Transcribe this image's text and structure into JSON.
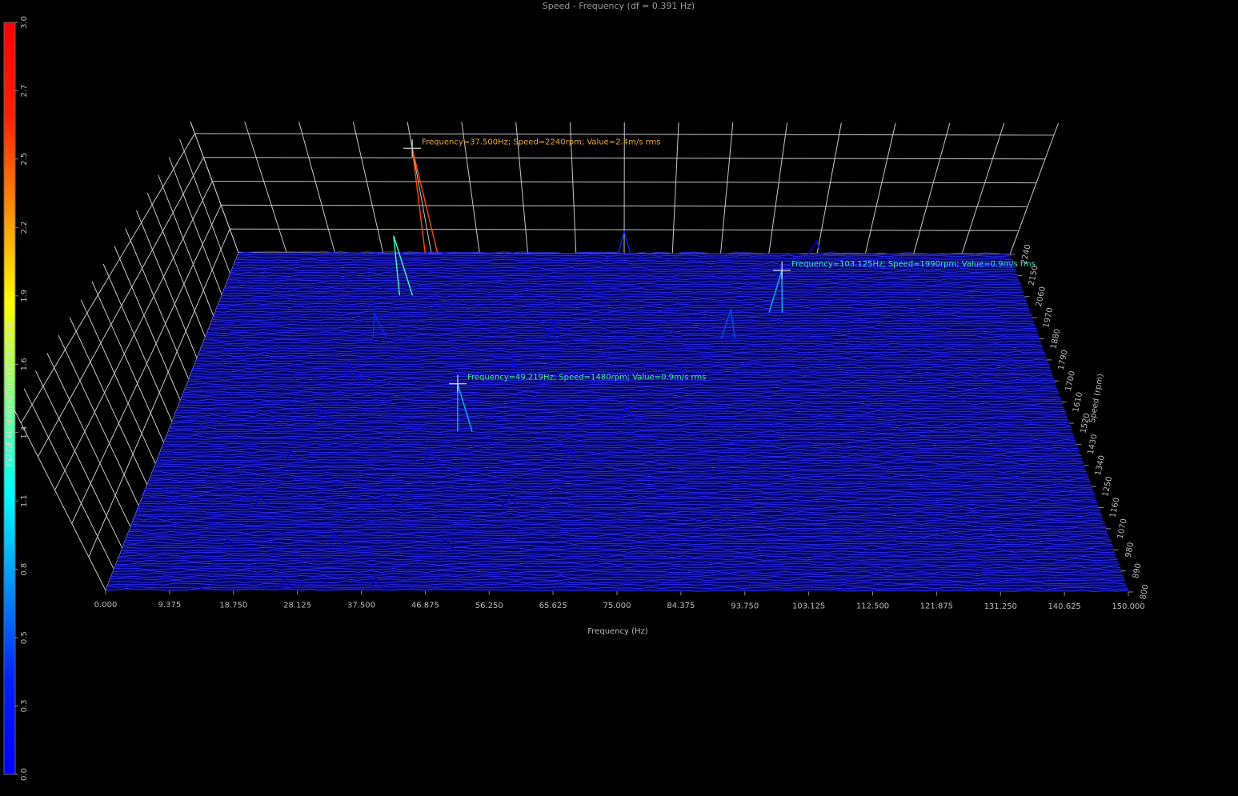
{
  "chart_data": {
    "type": "waterfall",
    "title": "Speed - Frequency (df = 0.391 Hz)",
    "x_label": "Frequency (Hz)",
    "y_label": "Speed (rpm)",
    "z_label": "FW-DE-H/Integral/TimeFFT (m/s rms)",
    "colormap": "jet",
    "xlim": [
      0,
      150
    ],
    "xticks": [
      {
        "value": 0,
        "label": "0.000"
      },
      {
        "value": 9.375,
        "label": "9.375"
      },
      {
        "value": 18.75,
        "label": "18.750"
      },
      {
        "value": 28.125,
        "label": "28.125"
      },
      {
        "value": 37.5,
        "label": "37.500"
      },
      {
        "value": 46.875,
        "label": "46.875"
      },
      {
        "value": 56.25,
        "label": "56.250"
      },
      {
        "value": 65.625,
        "label": "65.625"
      },
      {
        "value": 75,
        "label": "75.000"
      },
      {
        "value": 84.375,
        "label": "84.375"
      },
      {
        "value": 93.75,
        "label": "93.750"
      },
      {
        "value": 103.125,
        "label": "103.125"
      },
      {
        "value": 112.5,
        "label": "112.500"
      },
      {
        "value": 121.875,
        "label": "121.875"
      },
      {
        "value": 131.25,
        "label": "131.250"
      },
      {
        "value": 140.625,
        "label": "140.625"
      },
      {
        "value": 150,
        "label": "150.000"
      }
    ],
    "ylim": [
      800,
      2240
    ],
    "yticks": [
      800,
      890,
      980,
      1070,
      1160,
      1250,
      1340,
      1430,
      1520,
      1610,
      1700,
      1790,
      1880,
      1970,
      2060,
      2150,
      2240
    ],
    "zlim": [
      0,
      3
    ],
    "zticks": [
      {
        "value": 0,
        "label": "0.0"
      },
      {
        "value": 0.273,
        "label": "0.3"
      },
      {
        "value": 0.545,
        "label": "0.5"
      },
      {
        "value": 0.818,
        "label": "0.8"
      },
      {
        "value": 1.091,
        "label": "1.1"
      },
      {
        "value": 1.364,
        "label": "1.4"
      },
      {
        "value": 1.636,
        "label": "1.6"
      },
      {
        "value": 1.909,
        "label": "1.9"
      },
      {
        "value": 2.182,
        "label": "2.2"
      },
      {
        "value": 2.455,
        "label": "2.5"
      },
      {
        "value": 2.727,
        "label": "2.7"
      },
      {
        "value": 3,
        "label": "3.0"
      }
    ],
    "series": [
      {
        "x": [
          13.4,
          16.4,
          19.4,
          22.4,
          25.4,
          28.4,
          31.4,
          34.4,
          37.5
        ],
        "speed": [
          800,
          980,
          1160,
          1340,
          1520,
          1700,
          1880,
          2060,
          2240
        ],
        "values": [
          0.1,
          0.15,
          0.2,
          0.25,
          0.3,
          0.35,
          0.5,
          1.3,
          2.4
        ]
      },
      {
        "x": [
          26.7,
          32.7,
          38.7,
          44.7,
          49.2,
          56.7,
          62.7,
          68.7,
          75.0
        ],
        "speed": [
          800,
          980,
          1160,
          1340,
          1480,
          1700,
          1880,
          2060,
          2240
        ],
        "values": [
          0.2,
          0.3,
          0.25,
          0.3,
          0.9,
          0.4,
          0.35,
          0.4,
          0.5
        ]
      },
      {
        "x": [
          40,
          49,
          58,
          67,
          76,
          85,
          94,
          103.1,
          112
        ],
        "speed": [
          800,
          980,
          1160,
          1340,
          1520,
          1700,
          1880,
          1990,
          2240
        ],
        "values": [
          0.2,
          0.15,
          0.2,
          0.3,
          0.35,
          0.3,
          0.6,
          0.9,
          0.3
        ]
      }
    ],
    "annotations": [
      {
        "text": "Frequency=37.500Hz; Speed=2240rpm; Value=2.4m/s rms",
        "frequency": 37.5,
        "speed": 2240,
        "value": 2.4,
        "color": "#f0a830"
      },
      {
        "text": "Frequency=49.219Hz; Speed=1480rpm; Value=0.9m/s rms",
        "frequency": 49.219,
        "speed": 1480,
        "value": 0.9,
        "color": "#40e8a0"
      },
      {
        "text": "Frequency=103.125Hz; Speed=1990rpm; Value=0.9m/s rms",
        "frequency": 103.125,
        "speed": 1990,
        "value": 0.9,
        "color": "#40e8c0"
      }
    ]
  }
}
